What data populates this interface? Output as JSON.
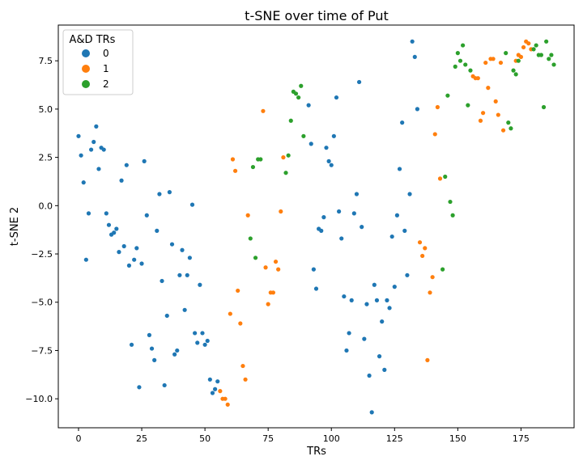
{
  "chart_data": {
    "type": "scatter",
    "title": "t-SNE over time of Put",
    "xlabel": "TRs",
    "ylabel": "t-SNE 2",
    "xlim": [
      -8,
      196
    ],
    "ylim": [
      -11.5,
      9.35
    ],
    "xticks": [
      0,
      25,
      50,
      75,
      100,
      125,
      150,
      175
    ],
    "yticks": [
      -10.0,
      -7.5,
      -5.0,
      -2.5,
      0.0,
      2.5,
      5.0,
      7.5
    ],
    "xtick_labels": [
      "0",
      "25",
      "50",
      "75",
      "100",
      "125",
      "150",
      "175"
    ],
    "ytick_labels": [
      "−10.0",
      "−7.5",
      "−5.0",
      "−2.5",
      "0.0",
      "2.5",
      "5.0",
      "7.5"
    ],
    "grid": false,
    "legend": {
      "title": "A&D TRs",
      "position": "top-left",
      "entries": [
        {
          "label": "0",
          "color": "#1f77b4"
        },
        {
          "label": "1",
          "color": "#ff7f0e"
        },
        {
          "label": "2",
          "color": "#2ca02c"
        }
      ]
    },
    "series": [
      {
        "name": "0",
        "color": "#1f77b4",
        "points": [
          [
            0,
            3.6
          ],
          [
            1,
            2.6
          ],
          [
            2,
            1.2
          ],
          [
            3,
            -2.8
          ],
          [
            4,
            -0.4
          ],
          [
            5,
            2.9
          ],
          [
            6,
            3.3
          ],
          [
            7,
            4.1
          ],
          [
            8,
            1.9
          ],
          [
            9,
            3.0
          ],
          [
            10,
            2.9
          ],
          [
            11,
            -0.4
          ],
          [
            12,
            -1.0
          ],
          [
            13,
            -1.5
          ],
          [
            14,
            -1.4
          ],
          [
            15,
            -1.2
          ],
          [
            16,
            -2.4
          ],
          [
            17,
            1.3
          ],
          [
            18,
            -2.1
          ],
          [
            19,
            2.1
          ],
          [
            20,
            -3.1
          ],
          [
            21,
            -7.2
          ],
          [
            22,
            -2.8
          ],
          [
            23,
            -2.2
          ],
          [
            24,
            -9.4
          ],
          [
            25,
            -3.0
          ],
          [
            26,
            2.3
          ],
          [
            27,
            -0.5
          ],
          [
            28,
            -6.7
          ],
          [
            29,
            -7.4
          ],
          [
            30,
            -8.0
          ],
          [
            31,
            -1.3
          ],
          [
            32,
            0.6
          ],
          [
            33,
            -3.9
          ],
          [
            34,
            -9.3
          ],
          [
            35,
            -5.7
          ],
          [
            36,
            0.7
          ],
          [
            37,
            -2.0
          ],
          [
            38,
            -7.7
          ],
          [
            39,
            -7.5
          ],
          [
            40,
            -3.6
          ],
          [
            41,
            -2.3
          ],
          [
            42,
            -5.4
          ],
          [
            43,
            -3.6
          ],
          [
            44,
            -2.7
          ],
          [
            45,
            0.05
          ],
          [
            46,
            -6.6
          ],
          [
            47,
            -7.1
          ],
          [
            48,
            -4.1
          ],
          [
            49,
            -6.6
          ],
          [
            50,
            -7.2
          ],
          [
            51,
            -7.0
          ],
          [
            52,
            -9.0
          ],
          [
            53,
            -9.7
          ],
          [
            54,
            -9.5
          ],
          [
            55,
            -9.1
          ],
          [
            91,
            5.2
          ],
          [
            92,
            3.2
          ],
          [
            93,
            -3.3
          ],
          [
            94,
            -4.3
          ],
          [
            95,
            -1.2
          ],
          [
            96,
            -1.3
          ],
          [
            97,
            -0.6
          ],
          [
            98,
            3.0
          ],
          [
            99,
            2.3
          ],
          [
            100,
            2.1
          ],
          [
            101,
            3.6
          ],
          [
            102,
            5.6
          ],
          [
            103,
            -0.3
          ],
          [
            104,
            -1.7
          ],
          [
            105,
            -4.7
          ],
          [
            106,
            -7.5
          ],
          [
            107,
            -6.6
          ],
          [
            108,
            -4.9
          ],
          [
            109,
            -0.4
          ],
          [
            110,
            0.6
          ],
          [
            111,
            6.4
          ],
          [
            112,
            -1.1
          ],
          [
            113,
            -6.9
          ],
          [
            114,
            -5.1
          ],
          [
            115,
            -8.8
          ],
          [
            116,
            -10.7
          ],
          [
            117,
            -4.1
          ],
          [
            118,
            -4.9
          ],
          [
            119,
            -7.8
          ],
          [
            120,
            -6.0
          ],
          [
            121,
            -8.5
          ],
          [
            122,
            -4.9
          ],
          [
            123,
            -5.3
          ],
          [
            124,
            -1.6
          ],
          [
            125,
            -4.2
          ],
          [
            126,
            -0.5
          ],
          [
            127,
            1.9
          ],
          [
            128,
            4.3
          ],
          [
            129,
            -1.3
          ],
          [
            130,
            -3.6
          ],
          [
            131,
            0.6
          ],
          [
            132,
            8.5
          ],
          [
            133,
            7.7
          ],
          [
            134,
            5.0
          ]
        ]
      },
      {
        "name": "1",
        "color": "#ff7f0e",
        "points": [
          [
            56,
            -9.6
          ],
          [
            57,
            -10.0
          ],
          [
            58,
            -10.0
          ],
          [
            59,
            -10.3
          ],
          [
            60,
            -5.6
          ],
          [
            61,
            2.4
          ],
          [
            62,
            1.8
          ],
          [
            63,
            -4.4
          ],
          [
            64,
            -6.1
          ],
          [
            65,
            -8.3
          ],
          [
            66,
            -9.0
          ],
          [
            67,
            -0.5
          ],
          [
            73,
            4.9
          ],
          [
            74,
            -3.2
          ],
          [
            75,
            -5.1
          ],
          [
            76,
            -4.5
          ],
          [
            77,
            -4.5
          ],
          [
            78,
            -2.9
          ],
          [
            79,
            -3.3
          ],
          [
            80,
            -0.3
          ],
          [
            81,
            2.5
          ],
          [
            135,
            -1.9
          ],
          [
            136,
            -2.6
          ],
          [
            137,
            -2.2
          ],
          [
            138,
            -8.0
          ],
          [
            139,
            -4.5
          ],
          [
            140,
            -3.7
          ],
          [
            141,
            3.7
          ],
          [
            142,
            5.1
          ],
          [
            143,
            1.4
          ],
          [
            156,
            6.7
          ],
          [
            157,
            6.6
          ],
          [
            158,
            6.6
          ],
          [
            159,
            4.4
          ],
          [
            160,
            4.8
          ],
          [
            161,
            7.4
          ],
          [
            162,
            6.1
          ],
          [
            163,
            7.6
          ],
          [
            164,
            7.6
          ],
          [
            165,
            5.4
          ],
          [
            166,
            4.7
          ],
          [
            167,
            7.4
          ],
          [
            168,
            3.9
          ],
          [
            173,
            7.5
          ],
          [
            174,
            7.8
          ],
          [
            175,
            7.7
          ],
          [
            176,
            8.2
          ],
          [
            177,
            8.5
          ],
          [
            178,
            8.4
          ],
          [
            179,
            8.1
          ]
        ]
      },
      {
        "name": "2",
        "color": "#2ca02c",
        "points": [
          [
            68,
            -1.7
          ],
          [
            69,
            2.0
          ],
          [
            70,
            -2.7
          ],
          [
            71,
            2.4
          ],
          [
            72,
            2.4
          ],
          [
            82,
            1.7
          ],
          [
            83,
            2.6
          ],
          [
            84,
            4.4
          ],
          [
            85,
            5.9
          ],
          [
            86,
            5.8
          ],
          [
            87,
            5.6
          ],
          [
            88,
            6.2
          ],
          [
            89,
            3.6
          ],
          [
            144,
            -3.3
          ],
          [
            145,
            1.5
          ],
          [
            146,
            5.7
          ],
          [
            147,
            0.2
          ],
          [
            148,
            -0.5
          ],
          [
            149,
            7.2
          ],
          [
            150,
            7.9
          ],
          [
            151,
            7.5
          ],
          [
            152,
            8.3
          ],
          [
            153,
            7.3
          ],
          [
            154,
            5.2
          ],
          [
            155,
            7.0
          ],
          [
            169,
            7.9
          ],
          [
            170,
            4.3
          ],
          [
            171,
            4.0
          ],
          [
            172,
            7.0
          ],
          [
            173,
            6.8
          ],
          [
            174,
            7.5
          ],
          [
            180,
            8.1
          ],
          [
            181,
            8.3
          ],
          [
            182,
            7.8
          ],
          [
            183,
            7.8
          ],
          [
            184,
            5.1
          ],
          [
            185,
            8.5
          ],
          [
            186,
            7.6
          ],
          [
            187,
            7.8
          ],
          [
            188,
            7.3
          ]
        ]
      }
    ]
  }
}
